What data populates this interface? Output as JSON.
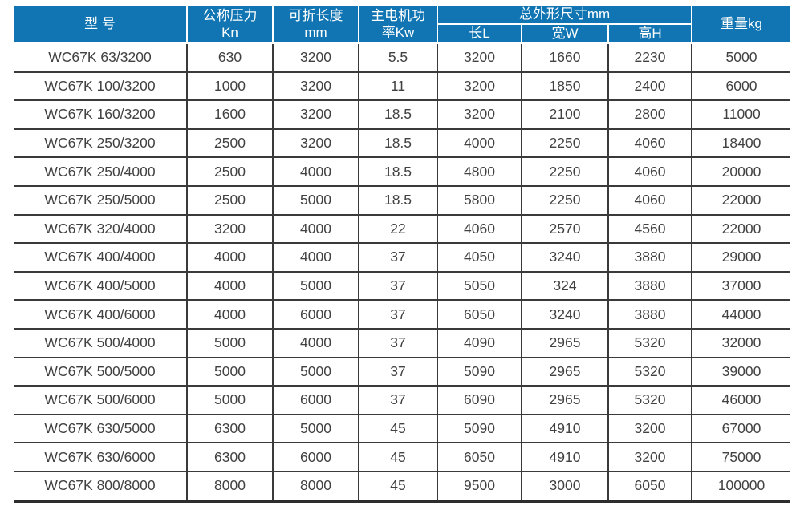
{
  "colors": {
    "header_background": "#1075b2",
    "header_text": "#ffffff",
    "body_text": "#414141",
    "grid_line": "#3a3a3a"
  },
  "table": {
    "header": {
      "model": "型 号",
      "pressure_line1": "公称压力",
      "pressure_line2": "Kn",
      "fold_length_line1": "可折长度",
      "fold_length_line2": "mm",
      "motor_power_line1": "主电机功",
      "motor_power_line2": "率Kw",
      "dimensions_group": "总外形尺寸mm",
      "dim_length": "长L",
      "dim_width": "宽W",
      "dim_height": "高H",
      "weight": "重量kg"
    },
    "rows": [
      [
        "WC67K 63/3200",
        "630",
        "3200",
        "5.5",
        "3200",
        "1660",
        "2230",
        "5000"
      ],
      [
        "WC67K 100/3200",
        "1000",
        "3200",
        "11",
        "3200",
        "1850",
        "2400",
        "6000"
      ],
      [
        "WC67K 160/3200",
        "1600",
        "3200",
        "18.5",
        "3200",
        "2100",
        "2800",
        "11000"
      ],
      [
        "WC67K 250/3200",
        "2500",
        "3200",
        "18.5",
        "4000",
        "2250",
        "4060",
        "18400"
      ],
      [
        "WC67K 250/4000",
        "2500",
        "4000",
        "18.5",
        "4800",
        "2250",
        "4060",
        "20000"
      ],
      [
        "WC67K 250/5000",
        "2500",
        "5000",
        "18.5",
        "5800",
        "2250",
        "4060",
        "22000"
      ],
      [
        "WC67K 320/4000",
        "3200",
        "4000",
        "22",
        "4060",
        "2570",
        "4560",
        "22000"
      ],
      [
        "WC67K 400/4000",
        "4000",
        "4000",
        "37",
        "4050",
        "3240",
        "3880",
        "29000"
      ],
      [
        "WC67K 400/5000",
        "4000",
        "5000",
        "37",
        "5050",
        "324",
        "3880",
        "37000"
      ],
      [
        "WC67K 400/6000",
        "4000",
        "6000",
        "37",
        "6050",
        "3240",
        "3880",
        "44000"
      ],
      [
        "WC67K 500/4000",
        "5000",
        "4000",
        "37",
        "4090",
        "2965",
        "5320",
        "32000"
      ],
      [
        "WC67K 500/5000",
        "5000",
        "5000",
        "37",
        "5090",
        "2965",
        "5320",
        "39000"
      ],
      [
        "WC67K 500/6000",
        "5000",
        "6000",
        "37",
        "6090",
        "2965",
        "5320",
        "46000"
      ],
      [
        "WC67K 630/5000",
        "6300",
        "5000",
        "45",
        "5090",
        "4910",
        "3200",
        "67000"
      ],
      [
        "WC67K 630/6000",
        "6300",
        "6000",
        "45",
        "6050",
        "4910",
        "3200",
        "75000"
      ],
      [
        "WC67K 800/8000",
        "8000",
        "8000",
        "45",
        "9500",
        "3000",
        "6050",
        "100000"
      ]
    ]
  }
}
